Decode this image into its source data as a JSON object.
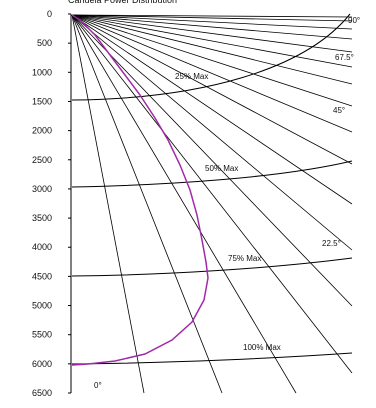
{
  "chart_data": {
    "type": "line",
    "title": "Candela Power Distribution",
    "y_axis": {
      "ylim": [
        0,
        6500
      ],
      "ticks": [
        0,
        500,
        1000,
        1500,
        2000,
        2500,
        3000,
        3500,
        4000,
        4500,
        5000,
        5500,
        6000,
        6500
      ],
      "inverted": true
    },
    "grid": false,
    "ray_angles": [
      {
        "label": "0°"
      },
      {
        "label": "22.5°"
      },
      {
        "label": "45°"
      },
      {
        "label": "67.5°"
      },
      {
        "label": "90°"
      }
    ],
    "arcs": [
      {
        "label": "25% Max",
        "left_level": 1500
      },
      {
        "label": "50% Max",
        "left_level": 3000
      },
      {
        "label": "75% Max",
        "left_level": 4500
      },
      {
        "label": "100% Max",
        "left_level": 6000
      }
    ],
    "series": [
      {
        "color": "#a12aa8",
        "x": [
          0,
          0.01,
          0.02,
          0.03,
          0.04,
          0.06,
          0.08,
          0.1,
          0.12,
          0.14,
          0.16,
          0.18,
          0.2,
          0.22,
          0.24,
          0.26,
          0.28,
          0.3,
          0.32,
          0.34,
          0.36,
          0.38,
          0.4,
          0.42,
          0.44,
          0.46,
          0.48,
          0.5,
          0.52,
          0.54,
          0.56,
          0.58,
          0.6,
          0.62,
          0.64,
          0.66,
          0.68,
          0.7,
          0.72,
          0.74,
          0.76,
          0.78,
          0.8,
          0.82,
          0.84,
          0.86,
          0.88,
          0.9,
          0.92,
          0.94,
          0.96,
          0.98,
          1.0
        ],
        "y": [
          0,
          50,
          100,
          150,
          200,
          300,
          400,
          500,
          600,
          700,
          800,
          900,
          1000,
          1100,
          1200,
          1300,
          1400,
          1500,
          1600,
          1700,
          1800,
          1900,
          2000,
          2100,
          2200,
          2300,
          2400,
          2500,
          2600,
          2700,
          2800,
          2900,
          3000,
          3100,
          3200,
          3300,
          3400,
          3500,
          3600,
          3700,
          3800,
          3900,
          4000,
          4100,
          4200,
          4300,
          4400,
          4500,
          4600,
          4700,
          4800,
          4900,
          5000
        ]
      }
    ]
  },
  "colors": {
    "curve": "#a12aa8",
    "lines": "#000000",
    "background": "#ffffff"
  }
}
